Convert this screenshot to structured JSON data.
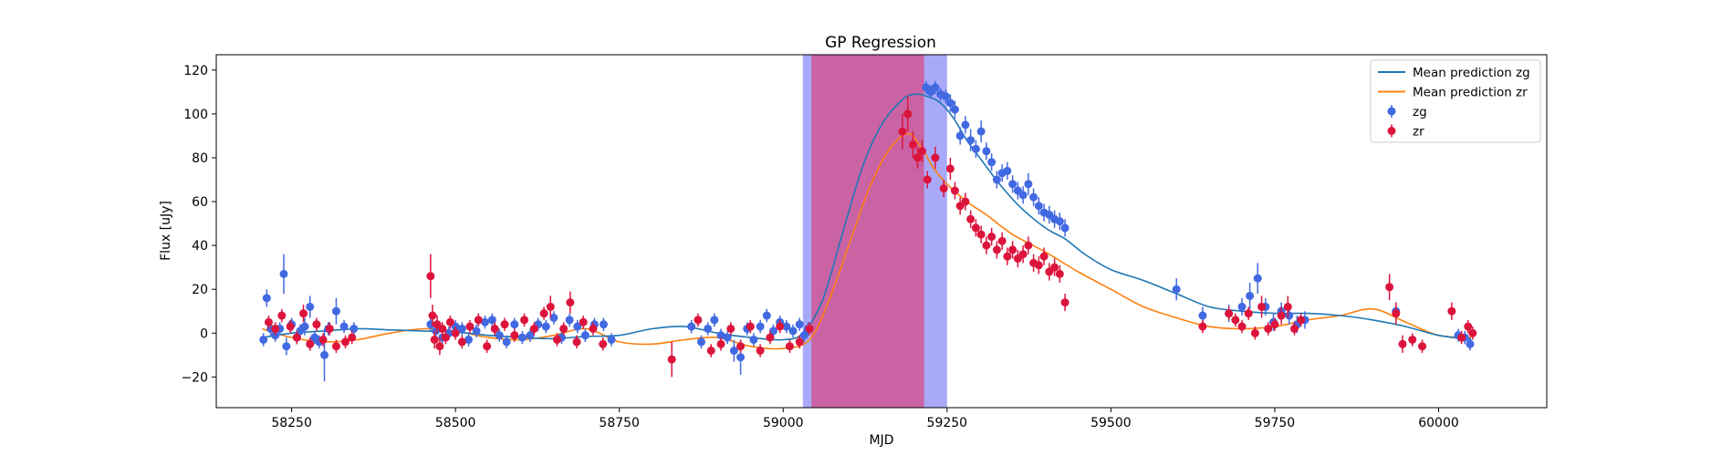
{
  "chart_data": {
    "type": "scatter",
    "title": "GP Regression",
    "xlabel": "MJD",
    "ylabel": "Flux [uJy]",
    "xlim": [
      58135,
      60165
    ],
    "ylim": [
      -34,
      127
    ],
    "xticks": [
      58250,
      58500,
      58750,
      59000,
      59250,
      59500,
      59750,
      60000
    ],
    "yticks": [
      -20,
      0,
      20,
      40,
      60,
      80,
      100,
      120
    ],
    "legend_position": "top-right",
    "legend": [
      {
        "label": "Mean prediction zg",
        "kind": "line",
        "color": "#1f77b4"
      },
      {
        "label": "Mean prediction zr",
        "kind": "line",
        "color": "#ff7f0e"
      },
      {
        "label": "zg",
        "kind": "marker",
        "color": "#4169e1"
      },
      {
        "label": "zr",
        "kind": "marker",
        "color": "#dc143c"
      }
    ],
    "shaded_regions": [
      {
        "name": "zg-gap",
        "x0": 59030,
        "x1": 59250,
        "color": "#6f6ff5",
        "opacity": 0.6
      },
      {
        "name": "zr-gap",
        "x0": 59043,
        "x1": 59215,
        "color": "#e0356a",
        "opacity": 0.6
      }
    ],
    "mean_zg": {
      "name": "Mean prediction zg",
      "color": "#1f77b4",
      "x": [
        58205,
        58250,
        58300,
        58350,
        58400,
        58450,
        58500,
        58550,
        58600,
        58650,
        58700,
        58750,
        58800,
        58850,
        58900,
        58950,
        59000,
        59030,
        59060,
        59090,
        59120,
        59150,
        59180,
        59200,
        59220,
        59240,
        59260,
        59280,
        59300,
        59330,
        59360,
        59400,
        59430,
        59460,
        59500,
        59550,
        59600,
        59650,
        59700,
        59750,
        59800,
        59850,
        59900,
        59950,
        60000,
        60050
      ],
      "y": [
        -2,
        0,
        1,
        2,
        1.5,
        1,
        0.5,
        -1,
        -2,
        -2.5,
        -1.5,
        -1,
        2,
        3,
        0,
        -2,
        -3,
        0,
        15,
        45,
        75,
        95,
        106,
        109,
        108,
        105,
        98,
        88,
        80,
        68,
        58,
        48,
        43,
        36,
        29,
        24,
        18,
        12,
        10,
        9,
        9,
        8,
        6,
        3,
        -1,
        -3
      ]
    },
    "mean_zr": {
      "name": "Mean prediction zr",
      "color": "#ff7f0e",
      "x": [
        58205,
        58250,
        58300,
        58350,
        58400,
        58450,
        58500,
        58550,
        58600,
        58650,
        58700,
        58750,
        58800,
        58850,
        58900,
        58950,
        59000,
        59040,
        59070,
        59100,
        59130,
        59160,
        59190,
        59210,
        59230,
        59250,
        59280,
        59310,
        59350,
        59400,
        59450,
        59500,
        59550,
        59600,
        59650,
        59700,
        59750,
        59800,
        59850,
        59900,
        59950,
        60000,
        60050
      ],
      "y": [
        2,
        -2,
        -4,
        -3,
        0,
        2,
        1,
        -2,
        -3,
        -1,
        2,
        -4,
        -5,
        -3,
        -2,
        -6,
        -7,
        -3,
        15,
        40,
        65,
        83,
        91,
        85,
        75,
        68,
        60,
        54,
        45,
        37,
        28,
        20,
        12,
        7,
        3,
        2,
        3,
        6,
        8,
        11,
        5,
        -1,
        -2
      ]
    },
    "series": [
      {
        "name": "zg",
        "color": "#4169e1",
        "x": [
          58207,
          58212,
          58218,
          58225,
          58232,
          58238,
          58242,
          58250,
          58258,
          58263,
          58270,
          58278,
          58285,
          58292,
          58300,
          58306,
          58318,
          58330,
          58345,
          58462,
          58470,
          58480,
          58490,
          58500,
          58510,
          58520,
          58532,
          58545,
          58556,
          58567,
          58578,
          58590,
          58602,
          58614,
          58626,
          58638,
          58650,
          58662,
          58674,
          58686,
          58698,
          58712,
          58726,
          58738,
          58860,
          58875,
          58885,
          58895,
          58905,
          58915,
          58925,
          58935,
          58945,
          58955,
          58965,
          58975,
          58985,
          58995,
          59005,
          59015,
          59025,
          59032,
          59038,
          59218,
          59225,
          59232,
          59240,
          59248,
          59255,
          59262,
          59270,
          59278,
          59286,
          59294,
          59302,
          59310,
          59318,
          59326,
          59334,
          59342,
          59350,
          59358,
          59366,
          59374,
          59382,
          59390,
          59398,
          59406,
          59414,
          59422,
          59430,
          59600,
          59640,
          59680,
          59700,
          59712,
          59724,
          59736,
          59748,
          59760,
          59772,
          59784,
          59796,
          59935,
          60030,
          60040,
          60048
        ],
        "y": [
          -3,
          16,
          2,
          -1,
          2,
          27,
          -6,
          4,
          -2,
          1,
          3,
          12,
          -2,
          -4,
          -10,
          2,
          10,
          3,
          2,
          4,
          1,
          -2,
          0,
          3,
          2,
          -3,
          1,
          5,
          6,
          -1,
          -4,
          4,
          -2,
          -1,
          4,
          3,
          7,
          -2,
          6,
          3,
          -1,
          4,
          4,
          -3,
          3,
          -4,
          2,
          6,
          -1,
          -2,
          -8,
          -11,
          2,
          -3,
          3,
          8,
          1,
          5,
          3,
          1,
          4,
          -1,
          2,
          112,
          110,
          112,
          109,
          108,
          105,
          102,
          90,
          95,
          88,
          84,
          92,
          83,
          78,
          70,
          73,
          74,
          68,
          65,
          63,
          68,
          62,
          58,
          55,
          54,
          52,
          51,
          48,
          20,
          8,
          9,
          12,
          17,
          25,
          12,
          5,
          10,
          8,
          4,
          6,
          10,
          -1,
          -2,
          -5
        ],
        "err": [
          3,
          4,
          3,
          3,
          3,
          9,
          4,
          3,
          3,
          3,
          4,
          5,
          3,
          3,
          12,
          3,
          6,
          3,
          3,
          3,
          3,
          3,
          3,
          3,
          3,
          3,
          3,
          3,
          3,
          3,
          3,
          3,
          3,
          3,
          3,
          3,
          3,
          3,
          3,
          3,
          3,
          3,
          3,
          3,
          3,
          3,
          3,
          3,
          3,
          3,
          5,
          8,
          3,
          3,
          3,
          3,
          3,
          3,
          3,
          3,
          3,
          3,
          3,
          3,
          3,
          3,
          3,
          3,
          4,
          4,
          4,
          4,
          5,
          4,
          5,
          4,
          4,
          4,
          4,
          4,
          4,
          4,
          4,
          5,
          4,
          4,
          4,
          4,
          4,
          4,
          4,
          5,
          4,
          4,
          4,
          6,
          7,
          4,
          4,
          4,
          4,
          4,
          4,
          4,
          3,
          3,
          3
        ]
      },
      {
        "name": "zr",
        "color": "#dc143c",
        "x": [
          58215,
          58225,
          58235,
          58248,
          58258,
          58268,
          58278,
          58288,
          58298,
          58308,
          58318,
          58332,
          58342,
          58462,
          58465,
          58468,
          58472,
          58476,
          58480,
          58485,
          58492,
          58500,
          58510,
          58522,
          58535,
          58548,
          58560,
          58575,
          58590,
          58605,
          58620,
          58635,
          58645,
          58655,
          58665,
          58675,
          58685,
          58695,
          58710,
          58725,
          58830,
          58870,
          58890,
          58905,
          58920,
          58935,
          58950,
          58965,
          58980,
          58995,
          59010,
          59025,
          59040,
          59182,
          59190,
          59198,
          59205,
          59212,
          59220,
          59232,
          59245,
          59255,
          59262,
          59270,
          59278,
          59286,
          59294,
          59302,
          59310,
          59318,
          59326,
          59334,
          59342,
          59350,
          59358,
          59366,
          59374,
          59382,
          59390,
          59398,
          59406,
          59414,
          59422,
          59430,
          59640,
          59680,
          59690,
          59700,
          59710,
          59720,
          59730,
          59740,
          59750,
          59760,
          59770,
          59780,
          59790,
          59925,
          59935,
          59945,
          59960,
          59975,
          60020,
          60035,
          60045,
          60052
        ],
        "y": [
          5,
          2,
          8,
          3,
          -2,
          9,
          -5,
          4,
          -3,
          2,
          -6,
          -4,
          -2,
          26,
          8,
          -3,
          4,
          -6,
          2,
          -2,
          5,
          0,
          -4,
          3,
          6,
          -6,
          2,
          4,
          -1,
          6,
          2,
          9,
          12,
          -3,
          2,
          14,
          -4,
          5,
          2,
          -5,
          -12,
          6,
          -8,
          -5,
          2,
          -6,
          3,
          -8,
          -2,
          3,
          -6,
          -4,
          2,
          92,
          100,
          86,
          80,
          83,
          70,
          80,
          66,
          75,
          65,
          58,
          60,
          52,
          48,
          45,
          40,
          44,
          38,
          42,
          35,
          38,
          34,
          36,
          40,
          32,
          31,
          35,
          28,
          30,
          27,
          14,
          3,
          9,
          6,
          3,
          9,
          0,
          12,
          2,
          4,
          8,
          12,
          2,
          6,
          21,
          9,
          -5,
          -3,
          -6,
          10,
          -2,
          3,
          0
        ],
        "err": [
          3,
          3,
          3,
          3,
          3,
          4,
          3,
          3,
          3,
          3,
          3,
          3,
          3,
          10,
          5,
          4,
          4,
          4,
          3,
          3,
          3,
          3,
          3,
          3,
          3,
          3,
          3,
          3,
          3,
          3,
          3,
          3,
          5,
          3,
          3,
          5,
          3,
          3,
          3,
          3,
          8,
          3,
          3,
          3,
          3,
          3,
          3,
          3,
          3,
          3,
          3,
          3,
          3,
          8,
          8,
          6,
          5,
          5,
          4,
          5,
          4,
          5,
          4,
          4,
          4,
          4,
          4,
          4,
          4,
          4,
          4,
          4,
          4,
          4,
          4,
          4,
          4,
          4,
          4,
          4,
          4,
          4,
          4,
          4,
          3,
          3,
          3,
          3,
          3,
          3,
          5,
          3,
          3,
          4,
          5,
          3,
          3,
          6,
          5,
          4,
          3,
          3,
          4,
          3,
          3,
          3
        ]
      }
    ]
  }
}
